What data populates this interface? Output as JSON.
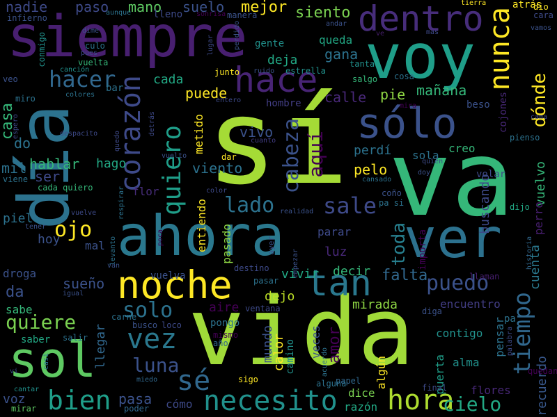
{
  "background": "#000000",
  "words": [
    {
      "text": "sí",
      "color": "#a5db36"
    },
    {
      "text": "va",
      "color": "#35b779"
    },
    {
      "text": "vida",
      "color": "#a0da39"
    },
    {
      "text": "día",
      "color": "#2c728e"
    },
    {
      "text": "siempre",
      "color": "#481f70"
    },
    {
      "text": "voy",
      "color": "#1f9e89"
    },
    {
      "text": "ahora",
      "color": "#2a788e"
    },
    {
      "text": "noche",
      "color": "#fde725"
    },
    {
      "text": "ver",
      "color": "#2c718e"
    },
    {
      "text": "sol",
      "color": "#5ec962"
    },
    {
      "text": "tan",
      "color": "#2a788e"
    },
    {
      "text": "sólo",
      "color": "#3b528b"
    },
    {
      "text": "dentro",
      "color": "#472d7b"
    },
    {
      "text": "hace",
      "color": "#482475"
    },
    {
      "text": "corazón",
      "color": "#3e4a89"
    },
    {
      "text": "nunca",
      "color": "#fde725"
    },
    {
      "text": "quiero",
      "color": "#1f9e89"
    },
    {
      "text": "necesito",
      "color": "#21918c"
    },
    {
      "text": "tiempo",
      "color": "#31688e"
    },
    {
      "text": "vez",
      "color": "#2a788e"
    },
    {
      "text": "hora",
      "color": "#addc30"
    },
    {
      "text": "sé",
      "color": "#31688e"
    },
    {
      "text": "cabeza",
      "color": "#3b528b"
    },
    {
      "text": "bien",
      "color": "#1f9e89"
    },
    {
      "text": "puedo",
      "color": "#3b528b"
    },
    {
      "text": "sale",
      "color": "#3e4a89"
    },
    {
      "text": "hacer",
      "color": "#31688e"
    },
    {
      "text": "quiere",
      "color": "#7ad151"
    },
    {
      "text": "dónde",
      "color": "#fde725"
    },
    {
      "text": "lado",
      "color": "#2c728e"
    },
    {
      "text": "toda",
      "color": "#277f8e"
    },
    {
      "text": "luna",
      "color": "#3b528b"
    },
    {
      "text": "solo",
      "color": "#2c728e"
    },
    {
      "text": "ojo",
      "color": "#fde725"
    },
    {
      "text": "aquí",
      "color": "#440154"
    },
    {
      "text": "cielo",
      "color": "#22a884"
    },
    {
      "text": "recuerdo",
      "color": "#38588c"
    },
    {
      "text": "amor",
      "color": "#440154"
    },
    {
      "text": "casa",
      "color": "#35b779"
    },
    {
      "text": "paso",
      "color": "#3e4a89"
    },
    {
      "text": "mano",
      "color": "#5ec962"
    },
    {
      "text": "mejor",
      "color": "#fde725"
    },
    {
      "text": "suelo",
      "color": "#3b528b"
    },
    {
      "text": "nadie",
      "color": "#3e4a89"
    },
    {
      "text": "siento",
      "color": "#7ad151"
    },
    {
      "text": "cuenta",
      "color": "#2a788e"
    },
    {
      "text": "falta",
      "color": "#31688e"
    },
    {
      "text": "vuelvo",
      "color": "#35b779"
    },
    {
      "text": "buscando",
      "color": "#3e4a89"
    },
    {
      "text": "mañana",
      "color": "#35b779"
    },
    {
      "text": "sueño",
      "color": "#3b528b"
    },
    {
      "text": "mirada",
      "color": "#8fd744"
    },
    {
      "text": "puede",
      "color": "#fde725"
    },
    {
      "text": "viento",
      "color": "#2c728e"
    },
    {
      "text": "vivo",
      "color": "#3b528b"
    },
    {
      "text": "mundo",
      "color": "#3b528b"
    },
    {
      "text": "calor",
      "color": "#fde725"
    },
    {
      "text": "pelo",
      "color": "#fde725"
    },
    {
      "text": "hablar",
      "color": "#35b779"
    },
    {
      "text": "hago",
      "color": "#22a884"
    },
    {
      "text": "mil",
      "color": "#2c728e"
    },
    {
      "text": "ser",
      "color": "#3e4a89"
    },
    {
      "text": "cada",
      "color": "#22a884"
    },
    {
      "text": "calle",
      "color": "#482878"
    },
    {
      "text": "pie",
      "color": "#8fd744"
    },
    {
      "text": "gana",
      "color": "#2c728e"
    },
    {
      "text": "deja",
      "color": "#22a884"
    },
    {
      "text": "queda",
      "color": "#22a884"
    },
    {
      "text": "perdí",
      "color": "#2c728e"
    },
    {
      "text": "sola",
      "color": "#2c728e"
    },
    {
      "text": "creo",
      "color": "#35b779"
    },
    {
      "text": "metido",
      "color": "#fde725"
    },
    {
      "text": "piel",
      "color": "#2c728e"
    },
    {
      "text": "hoy",
      "color": "#3b528b"
    },
    {
      "text": "flor",
      "color": "#472d7b"
    },
    {
      "text": "entiendo",
      "color": "#fde725"
    },
    {
      "text": "pasado",
      "color": "#8fd744"
    },
    {
      "text": "luz",
      "color": "#482878"
    },
    {
      "text": "parar",
      "color": "#3e4a89"
    },
    {
      "text": "vivir",
      "color": "#22a884"
    },
    {
      "text": "decir",
      "color": "#35b779"
    },
    {
      "text": "dejo",
      "color": "#bddf26"
    },
    {
      "text": "puerta",
      "color": "#1f9e89"
    },
    {
      "text": "algún",
      "color": "#fde725"
    },
    {
      "text": "encuentro",
      "color": "#433e85"
    },
    {
      "text": "pensar",
      "color": "#2c728e"
    },
    {
      "text": "contigo",
      "color": "#21918c"
    },
    {
      "text": "alma",
      "color": "#21918c"
    },
    {
      "text": "flores",
      "color": "#482878"
    },
    {
      "text": "pasa",
      "color": "#3b528b"
    },
    {
      "text": "cómo",
      "color": "#3e4a89"
    },
    {
      "text": "voz",
      "color": "#3b528b"
    },
    {
      "text": "razón",
      "color": "#22a884"
    },
    {
      "text": "dice",
      "color": "#7ad151"
    },
    {
      "text": "veces",
      "color": "#3b528b"
    },
    {
      "text": "aire",
      "color": "#440154"
    },
    {
      "text": "llegar",
      "color": "#31688e"
    },
    {
      "text": "camino",
      "color": "#21918c"
    },
    {
      "text": "volar",
      "color": "#3e4a89"
    },
    {
      "text": "perro",
      "color": "#481f70"
    },
    {
      "text": "importa",
      "color": "#440154"
    },
    {
      "text": "beso",
      "color": "#3b528b"
    },
    {
      "text": "cojones",
      "color": "#482878"
    },
    {
      "text": "atrás",
      "color": "#fde725"
    },
    {
      "text": "droga",
      "color": "#3b528b"
    },
    {
      "text": "da",
      "color": "#3b528b"
    },
    {
      "text": "sabe",
      "color": "#35b779"
    },
    {
      "text": "saber",
      "color": "#22a884"
    },
    {
      "text": "do",
      "color": "#2c728e"
    },
    {
      "text": "mal",
      "color": "#3b528b"
    },
    {
      "text": "vuelva",
      "color": "#3b528b"
    },
    {
      "text": "pongo",
      "color": "#2c728e"
    },
    {
      "text": "busco",
      "color": "#3b528b"
    },
    {
      "text": "loco",
      "color": "#3e4a89"
    },
    {
      "text": "salgo",
      "color": "#35b779"
    },
    {
      "text": "cosa",
      "color": "#2c728e"
    },
    {
      "text": "bar",
      "color": "#2c728e"
    },
    {
      "text": "tanta",
      "color": "#21918c"
    },
    {
      "text": "gente",
      "color": "#21918c"
    },
    {
      "text": "junto",
      "color": "#fde725"
    },
    {
      "text": "estrella",
      "color": "#21918c"
    },
    {
      "text": "hombre",
      "color": "#433e85"
    },
    {
      "text": "dar",
      "color": "#fde725"
    },
    {
      "text": "pienso",
      "color": "#2c728e"
    },
    {
      "text": "dijo",
      "color": "#22a884"
    },
    {
      "text": "llaman",
      "color": "#481f70"
    },
    {
      "text": "diga",
      "color": "#3b528b"
    },
    {
      "text": "final",
      "color": "#3e4a89"
    },
    {
      "text": "quedan",
      "color": "#440154"
    },
    {
      "text": "mismo",
      "color": "#440154"
    },
    {
      "text": "sigo",
      "color": "#fde725"
    },
    {
      "text": "año",
      "color": "#31688e"
    },
    {
      "text": "papel",
      "color": "#31688e"
    },
    {
      "text": "poder",
      "color": "#31688e"
    },
    {
      "text": "miedo",
      "color": "#31688e"
    },
    {
      "text": "mirar",
      "color": "#5ec962"
    },
    {
      "text": "cantar",
      "color": "#21918c"
    },
    {
      "text": "carne",
      "color": "#2c728e"
    },
    {
      "text": "ventana",
      "color": "#3e4a89"
    },
    {
      "text": "destino",
      "color": "#3e4a89"
    },
    {
      "text": "pasar",
      "color": "#2c728e"
    },
    {
      "text": "ayer",
      "color": "#3b528b"
    },
    {
      "text": "empezar",
      "color": "#3b528b"
    },
    {
      "text": "alguna",
      "color": "#2c728e"
    },
    {
      "text": "acuerdo",
      "color": "#2c728e"
    },
    {
      "text": "historia",
      "color": "#31688e"
    },
    {
      "text": "palabra",
      "color": "#3e4a89"
    },
    {
      "text": "coño",
      "color": "#3b528b"
    },
    {
      "text": "pa si",
      "color": "#2c728e"
    },
    {
      "text": "pa",
      "color": "#2c728e"
    },
    {
      "text": "infierno",
      "color": "#3b528b"
    },
    {
      "text": "conmigo",
      "color": "#21918c"
    },
    {
      "text": "culo",
      "color": "#2c728e"
    },
    {
      "text": "dime",
      "color": "#3b528b"
    },
    {
      "text": "aunque",
      "color": "#2c728e"
    },
    {
      "text": "lleno",
      "color": "#3e4a89"
    },
    {
      "text": "sonrisa",
      "color": "#440154"
    },
    {
      "text": "manera",
      "color": "#3b528b"
    },
    {
      "text": "tierra",
      "color": "#fde725"
    },
    {
      "text": "dio",
      "color": "#fde725"
    },
    {
      "text": "cara",
      "color": "#3e4a89"
    },
    {
      "text": "vamos",
      "color": "#3b528b"
    },
    {
      "text": "mas",
      "color": "#3e4a89"
    },
    {
      "text": "ve",
      "color": "#481f70"
    },
    {
      "text": "andar",
      "color": "#3b528b"
    },
    {
      "text": "perdido",
      "color": "#3b528b"
    },
    {
      "text": "lugar",
      "color": "#3e4a89"
    },
    {
      "text": "pues",
      "color": "#3e4a89"
    },
    {
      "text": "canción",
      "color": "#21918c"
    },
    {
      "text": "vuelta",
      "color": "#35b779"
    },
    {
      "text": "colores",
      "color": "#2c728e"
    },
    {
      "text": "ruido",
      "color": "#3b528b"
    },
    {
      "text": "entero",
      "color": "#3e4a89"
    },
    {
      "text": "mira",
      "color": "#440154"
    },
    {
      "text": "cama",
      "color": "#3e4a89"
    },
    {
      "text": "quién",
      "color": "#3e4a89"
    },
    {
      "text": "doy",
      "color": "#3b528b"
    },
    {
      "text": "cansado",
      "color": "#2c728e"
    },
    {
      "text": "vuelvo_small",
      "color": "#3b528b"
    },
    {
      "text": "cuanto",
      "color": "#433e85"
    },
    {
      "text": "despacito",
      "color": "#3e4a89"
    },
    {
      "text": "quedo",
      "color": "#3e4a89"
    },
    {
      "text": "respirar",
      "color": "#2c728e"
    },
    {
      "text": "levanto",
      "color": "#2c728e"
    },
    {
      "text": "vuelve",
      "color": "#3e4a89"
    },
    {
      "text": "tener",
      "color": "#3b528b"
    },
    {
      "text": "poca",
      "color": "#440154"
    },
    {
      "text": "van",
      "color": "#3b528b"
    },
    {
      "text": "igual",
      "color": "#3b528b"
    },
    {
      "text": "salir",
      "color": "#2c728e"
    },
    {
      "text": "realidad",
      "color": "#3b528b"
    },
    {
      "text": "color",
      "color": "#3e4a89"
    },
    {
      "text": "casi",
      "color": "#2c728e"
    },
    {
      "text": "vi",
      "color": "#3b528b"
    },
    {
      "text": "espero",
      "color": "#3e4a89"
    },
    {
      "text": "miro",
      "color": "#2c728e"
    },
    {
      "text": "veo",
      "color": "#3b528b"
    },
    {
      "text": "viene",
      "color": "#2c728e"
    },
    {
      "text": "detrás",
      "color": "#3e4a89"
    },
    {
      "text": "cada quiero",
      "color": "#35b779"
    }
  ]
}
